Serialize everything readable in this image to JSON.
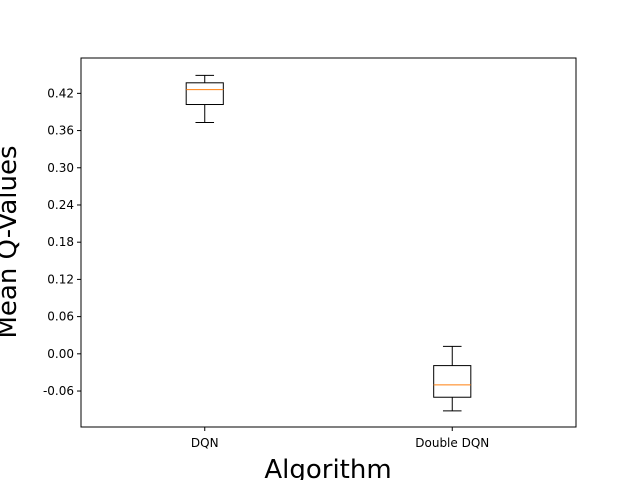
{
  "chart_data": {
    "type": "box",
    "title": "",
    "xlabel": "Algorithm",
    "ylabel": "Mean Q-Values",
    "categories": [
      "DQN",
      "Double DQN"
    ],
    "boxes": [
      {
        "category": "DQN",
        "whisker_low": 0.373,
        "q1": 0.402,
        "median": 0.426,
        "q3": 0.437,
        "whisker_high": 0.449
      },
      {
        "category": "Double DQN",
        "whisker_low": -0.092,
        "q1": -0.07,
        "median": -0.05,
        "q3": -0.019,
        "whisker_high": 0.012
      }
    ],
    "yticks": [
      -0.06,
      0.0,
      0.06,
      0.12,
      0.18,
      0.24,
      0.3,
      0.36,
      0.42
    ],
    "ytick_labels": [
      "-0.06",
      "0.00",
      "0.06",
      "0.12",
      "0.18",
      "0.24",
      "0.30",
      "0.36",
      "0.42"
    ],
    "ylim": [
      -0.118,
      0.477
    ],
    "grid": false,
    "colors": {
      "box": "#000000",
      "median": "#ff7f0e"
    }
  }
}
